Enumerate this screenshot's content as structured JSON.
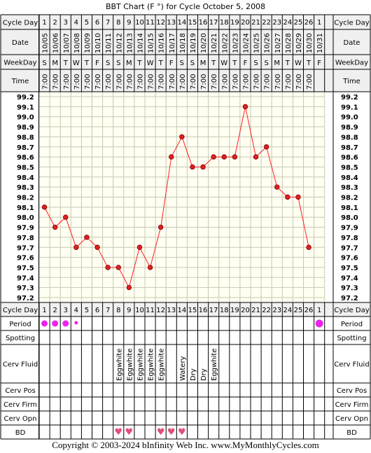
{
  "chart_data": {
    "type": "line",
    "title": "BBT Chart (F °) for Cycle October 5, 2008",
    "ylim": [
      97.2,
      99.2
    ],
    "y_ticks": [
      "99.2",
      "99.1",
      "99.0",
      "98.9",
      "98.8",
      "98.7",
      "98.6",
      "98.5",
      "98.4",
      "98.3",
      "98.2",
      "98.1",
      "98.0",
      "97.9",
      "97.8",
      "97.7",
      "97.6",
      "97.5",
      "97.4",
      "97.3",
      "97.2"
    ],
    "row_labels": {
      "cycle_day": "Cycle Day",
      "date": "Date",
      "weekday": "WeekDay",
      "time": "Time",
      "period": "Period",
      "spotting": "Spotting",
      "cerv_fluid": "Cerv Fluid",
      "cerv_pos": "Cerv Pos",
      "cerv_firm": "Cerv Firm",
      "cerv_opn": "Cerv Opn",
      "bd": "BD"
    },
    "cycle_days": [
      "1",
      "2",
      "3",
      "4",
      "5",
      "6",
      "7",
      "8",
      "9",
      "10",
      "11",
      "12",
      "13",
      "14",
      "15",
      "16",
      "17",
      "18",
      "19",
      "20",
      "21",
      "22",
      "23",
      "24",
      "25",
      "26",
      "1"
    ],
    "dates": [
      "10/05",
      "10/06",
      "10/07",
      "10/08",
      "10/09",
      "10/10",
      "10/11",
      "10/12",
      "10/13",
      "10/14",
      "10/15",
      "10/16",
      "10/17",
      "10/18",
      "10/19",
      "10/20",
      "10/21",
      "10/22",
      "10/23",
      "10/24",
      "10/25",
      "10/26",
      "10/27",
      "10/28",
      "10/29",
      "10/30",
      "10/31"
    ],
    "weekdays": [
      "S",
      "M",
      "T",
      "W",
      "T",
      "F",
      "S",
      "S",
      "M",
      "T",
      "W",
      "T",
      "F",
      "S",
      "S",
      "M",
      "T",
      "W",
      "T",
      "F",
      "S",
      "S",
      "M",
      "T",
      "W",
      "T",
      "F"
    ],
    "times": [
      "7:00",
      "7:00",
      "7:00",
      "7:00",
      "7:00",
      "7:00",
      "7:00",
      "7:00",
      "7:00",
      "7:00",
      "7:00",
      "7:00",
      "7:00",
      "7:00",
      "7:00",
      "7:00",
      "7:00",
      "7:00",
      "7:00",
      "7:00",
      "7:00",
      "7:00",
      "7:00",
      "7:00",
      "7:00",
      "7:00",
      ""
    ],
    "temperatures": [
      98.1,
      97.9,
      98.0,
      97.7,
      97.8,
      97.7,
      97.5,
      97.5,
      97.3,
      97.7,
      97.5,
      97.9,
      98.6,
      98.8,
      98.5,
      98.5,
      98.6,
      98.6,
      98.6,
      99.1,
      98.6,
      98.7,
      98.3,
      98.2,
      98.2,
      97.7,
      null
    ],
    "period": [
      "heavy",
      "heavy",
      "heavy",
      "light",
      "",
      "",
      "",
      "",
      "",
      "",
      "",
      "",
      "",
      "",
      "",
      "",
      "",
      "",
      "",
      "",
      "",
      "",
      "",
      "",
      "",
      "",
      "heavy"
    ],
    "cerv_fluid": [
      "",
      "",
      "",
      "",
      "",
      "",
      "",
      "Eggwhite",
      "Eggwhite",
      "Eggwhite",
      "Eggwhite",
      "Eggwhite",
      "",
      "Watery",
      "Dry",
      "Dry",
      "Eggwhite",
      "",
      "",
      "",
      "",
      "",
      "",
      "",
      "",
      "",
      ""
    ],
    "bd": [
      false,
      false,
      false,
      false,
      false,
      false,
      false,
      true,
      true,
      false,
      false,
      true,
      true,
      true,
      false,
      false,
      false,
      false,
      false,
      false,
      false,
      false,
      false,
      false,
      false,
      false,
      false
    ],
    "colors": {
      "line": "#ff2020",
      "marker": "#e02020",
      "period": "#ee22ee",
      "heart": "#e0507a",
      "plot_bg": "#fffff2",
      "header_bg": "#f0f0f0"
    }
  },
  "footer": "Copyright © 2003-2024 bInfinity Web Inc.     www.MyMonthlyCycles.com"
}
